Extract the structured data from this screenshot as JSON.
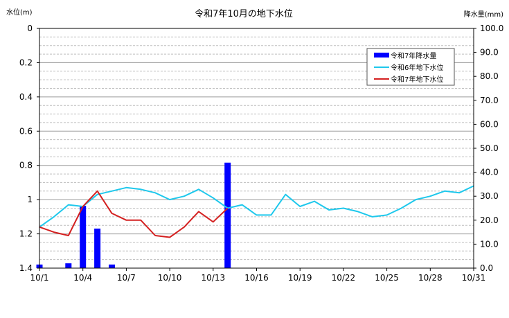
{
  "chart_data": {
    "type": "bar+line",
    "title": "令和7年10月の地下水位",
    "left_axis": {
      "label": "水位(m)",
      "range": [
        0,
        1.4
      ],
      "inverted": true,
      "ticks": [
        "0",
        "0.2",
        "0.4",
        "0.6",
        "0.8",
        "1",
        "1.2",
        "1.4"
      ]
    },
    "right_axis": {
      "label": "降水量(mm)",
      "range": [
        0,
        100
      ],
      "ticks": [
        "0.0",
        "10.0",
        "20.0",
        "30.0",
        "40.0",
        "50.0",
        "60.0",
        "70.0",
        "80.0",
        "90.0",
        "100.0"
      ]
    },
    "x_axis": {
      "range": [
        1,
        31
      ],
      "ticks": [
        {
          "day": 1,
          "label": "10/1"
        },
        {
          "day": 4,
          "label": "10/4"
        },
        {
          "day": 7,
          "label": "10/7"
        },
        {
          "day": 10,
          "label": "10/10"
        },
        {
          "day": 13,
          "label": "10/13"
        },
        {
          "day": 16,
          "label": "10/16"
        },
        {
          "day": 19,
          "label": "10/19"
        },
        {
          "day": 22,
          "label": "10/22"
        },
        {
          "day": 25,
          "label": "10/25"
        },
        {
          "day": 28,
          "label": "10/28"
        },
        {
          "day": 31,
          "label": "10/31"
        }
      ]
    },
    "grid": {
      "major": 0.2,
      "minor": 0.05
    },
    "legend_position": "top-right",
    "series": [
      {
        "name": "令和7年降水量",
        "kind": "bar",
        "axis": "right",
        "color": "#0000ff",
        "days": [
          1,
          2,
          3,
          4,
          5,
          6,
          7,
          8,
          9,
          10,
          11,
          12,
          13,
          14
        ],
        "values": [
          1.5,
          0,
          2,
          26,
          16.5,
          1.5,
          0,
          0,
          0,
          0,
          0,
          0,
          0,
          44
        ]
      },
      {
        "name": "令和6年地下水位",
        "kind": "line",
        "axis": "left",
        "color": "#1ec8ec",
        "days": [
          1,
          2,
          3,
          4,
          5,
          6,
          7,
          8,
          9,
          10,
          11,
          12,
          13,
          14,
          15,
          16,
          17,
          18,
          19,
          20,
          21,
          22,
          23,
          24,
          25,
          26,
          27,
          28,
          29,
          30,
          31
        ],
        "values": [
          1.16,
          1.1,
          1.03,
          1.04,
          0.97,
          0.95,
          0.93,
          0.94,
          0.96,
          1.0,
          0.98,
          0.94,
          0.99,
          1.05,
          1.03,
          1.09,
          1.09,
          0.97,
          1.04,
          1.01,
          1.06,
          1.05,
          1.07,
          1.1,
          1.09,
          1.05,
          1.0,
          0.98,
          0.95,
          0.96,
          0.92
        ]
      },
      {
        "name": "令和7年地下水位",
        "kind": "line",
        "axis": "left",
        "color": "#d42020",
        "days": [
          1,
          2,
          3,
          4,
          5,
          6,
          7,
          8,
          9,
          10,
          11,
          12,
          13,
          14
        ],
        "values": [
          1.16,
          1.19,
          1.21,
          1.04,
          0.95,
          1.08,
          1.12,
          1.12,
          1.21,
          1.22,
          1.16,
          1.07,
          1.13,
          1.05
        ]
      }
    ]
  }
}
